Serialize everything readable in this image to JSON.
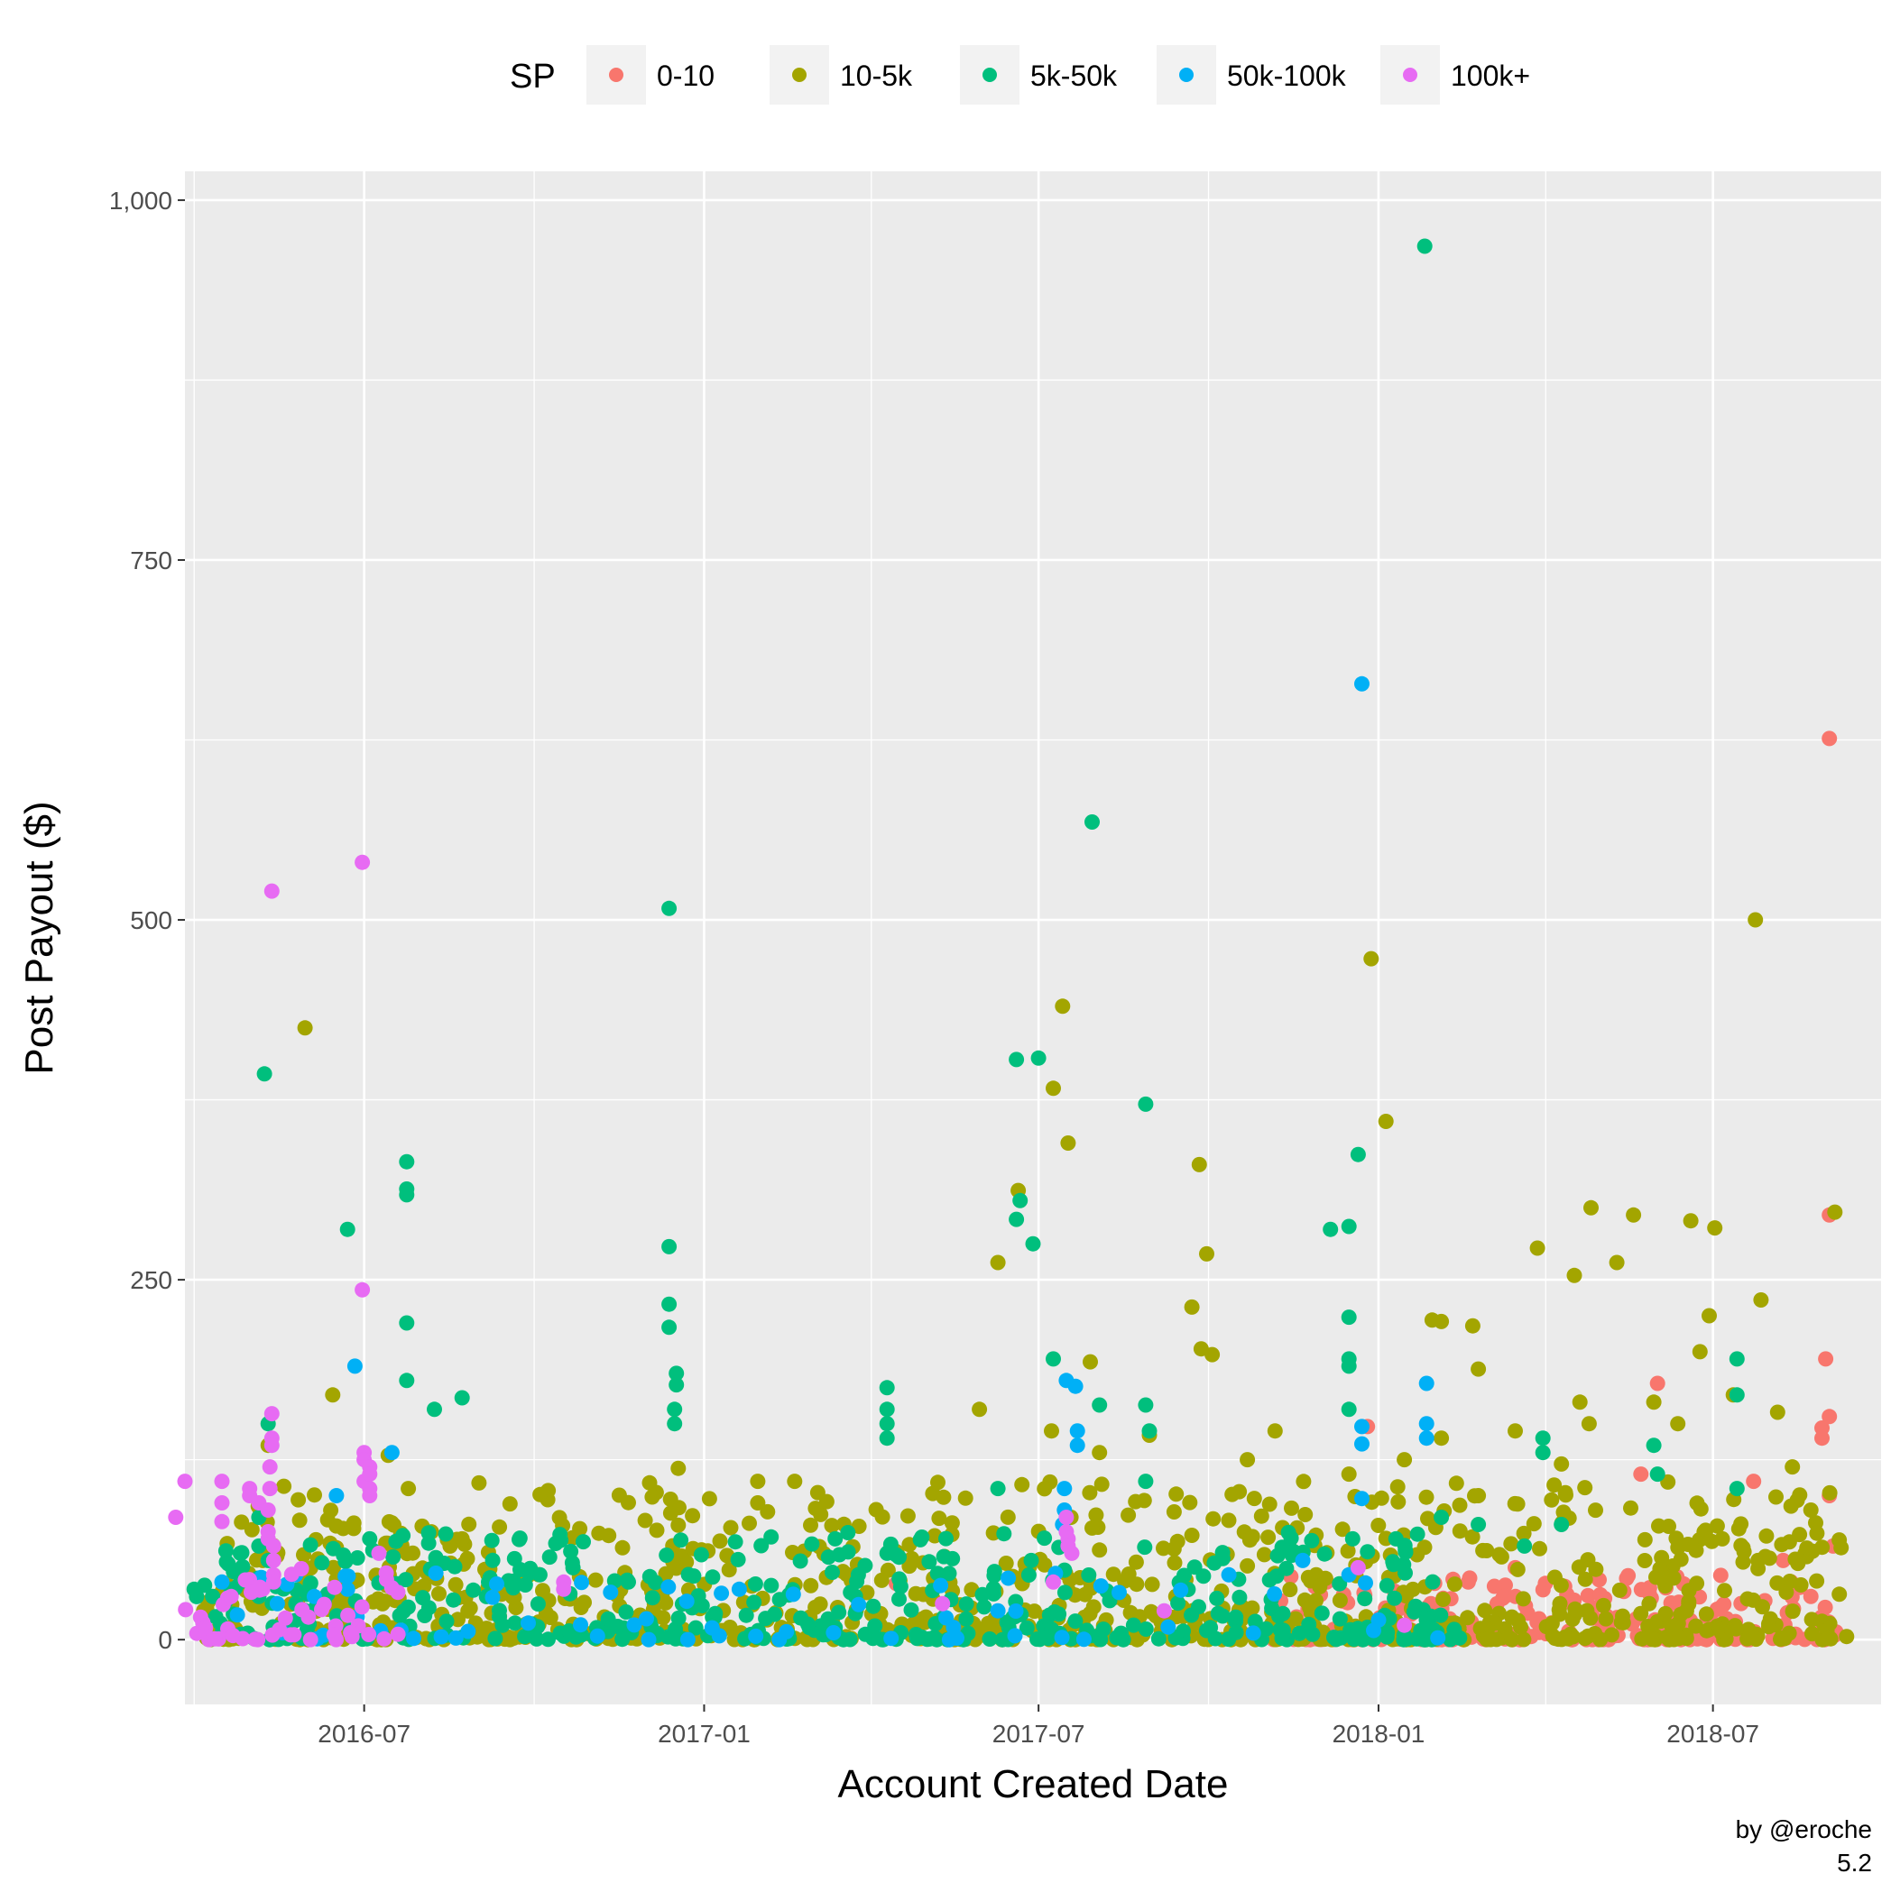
{
  "chart_data": {
    "type": "scatter",
    "title": "",
    "xlabel": "Account Created Date",
    "ylabel": "Post Payout ($)",
    "x_range": [
      "2016-03-26",
      "2018-09-30"
    ],
    "xlim": [
      0,
      918
    ],
    "ylim": [
      -45,
      1020
    ],
    "x_ticks": [
      {
        "label": "2016-07",
        "x": 97
      },
      {
        "label": "2017-01",
        "x": 281
      },
      {
        "label": "2017-07",
        "x": 462
      },
      {
        "label": "2018-01",
        "x": 646
      },
      {
        "label": "2018-07",
        "x": 827
      }
    ],
    "y_ticks": [
      {
        "label": "0",
        "y": 0
      },
      {
        "label": "250",
        "y": 250
      },
      {
        "label": "500",
        "y": 500
      },
      {
        "label": "750",
        "y": 750
      },
      {
        "label": "1,000",
        "y": 1000
      }
    ],
    "legend": {
      "title": "SP",
      "position": "top",
      "entries": [
        "0-10",
        "10-5k",
        "5k-50k",
        "50k-100k",
        "100k+"
      ]
    },
    "x_unit": "days since 2016-03-26",
    "series": [
      {
        "name": "0-10",
        "color": "#F8766D",
        "highlights": [
          [
            890,
            626
          ],
          [
            890,
            295
          ],
          [
            888,
            195
          ],
          [
            890,
            155
          ],
          [
            886,
            147
          ],
          [
            886,
            140
          ],
          [
            890,
            100
          ],
          [
            892,
            65
          ],
          [
            797,
            178
          ],
          [
            788,
            115
          ],
          [
            849,
            110
          ],
          [
            640,
            148
          ],
          [
            385,
            39
          ],
          [
            618,
            40
          ],
          [
            865,
            55
          ],
          [
            880,
            30
          ],
          [
            720,
            50
          ]
        ],
        "cluster": {
          "x": [
            585,
            895
          ],
          "ymax": 45,
          "n": 260,
          "dense": true
        }
      },
      {
        "name": "10-5k",
        "color": "#A3A500",
        "highlights": [
          [
            65,
            425
          ],
          [
            475,
            440
          ],
          [
            470,
            383
          ],
          [
            478,
            345
          ],
          [
            451,
            312
          ],
          [
            440,
            262
          ],
          [
            650,
            360
          ],
          [
            642,
            473
          ],
          [
            549,
            330
          ],
          [
            553,
            268
          ],
          [
            545,
            231
          ],
          [
            550,
            202
          ],
          [
            556,
            198
          ],
          [
            490,
            193
          ],
          [
            850,
            500
          ],
          [
            815,
            291
          ],
          [
            828,
            286
          ],
          [
            761,
            300
          ],
          [
            784,
            295
          ],
          [
            775,
            262
          ],
          [
            732,
            272
          ],
          [
            752,
            253
          ],
          [
            680,
            221
          ],
          [
            697,
            218
          ],
          [
            825,
            225
          ],
          [
            853,
            236
          ],
          [
            893,
            297
          ],
          [
            80,
            170
          ],
          [
            45,
            135
          ],
          [
            110,
            128
          ],
          [
            150,
            70
          ],
          [
            267,
            119
          ],
          [
            310,
            110
          ],
          [
            310,
            95
          ],
          [
            330,
            110
          ],
          [
            430,
            160
          ],
          [
            469,
            145
          ],
          [
            522,
            142
          ],
          [
            495,
            130
          ],
          [
            575,
            125
          ],
          [
            590,
            145
          ],
          [
            700,
            188
          ],
          [
            720,
            145
          ],
          [
            755,
            165
          ],
          [
            760,
            150
          ],
          [
            795,
            165
          ],
          [
            820,
            200
          ],
          [
            838,
            170
          ],
          [
            862,
            158
          ],
          [
            870,
            120
          ],
          [
            808,
            150
          ],
          [
            745,
            122
          ],
          [
            680,
            140
          ],
          [
            700,
            100
          ],
          [
            630,
            115
          ],
          [
            880,
            90
          ],
          [
            675,
            222
          ],
          [
            660,
            125
          ]
        ],
        "cluster": {
          "x": [
            10,
            900
          ],
          "ymax": 110,
          "n": 900
        }
      },
      {
        "name": "5k-50k",
        "color": "#00BF7D",
        "highlights": [
          [
            671,
            968
          ],
          [
            491,
            568
          ],
          [
            262,
            508
          ],
          [
            43,
            393
          ],
          [
            462,
            404
          ],
          [
            450,
            403
          ],
          [
            520,
            372
          ],
          [
            120,
            332
          ],
          [
            120,
            313
          ],
          [
            120,
            309
          ],
          [
            630,
            287
          ],
          [
            635,
            337
          ],
          [
            88,
            285
          ],
          [
            452,
            305
          ],
          [
            450,
            292
          ],
          [
            459,
            275
          ],
          [
            262,
            273
          ],
          [
            262,
            233
          ],
          [
            262,
            217
          ],
          [
            266,
            185
          ],
          [
            266,
            177
          ],
          [
            265,
            160
          ],
          [
            265,
            150
          ],
          [
            630,
            224
          ],
          [
            630,
            195
          ],
          [
            630,
            190
          ],
          [
            630,
            160
          ],
          [
            120,
            220
          ],
          [
            120,
            180
          ],
          [
            150,
            168
          ],
          [
            470,
            195
          ],
          [
            520,
            163
          ],
          [
            495,
            163
          ],
          [
            522,
            145
          ],
          [
            380,
            175
          ],
          [
            380,
            160
          ],
          [
            380,
            150
          ],
          [
            380,
            140
          ],
          [
            840,
            195
          ],
          [
            840,
            170
          ],
          [
            840,
            105
          ],
          [
            795,
            135
          ],
          [
            797,
            115
          ],
          [
            735,
            140
          ],
          [
            735,
            130
          ],
          [
            745,
            80
          ],
          [
            620,
            285
          ],
          [
            680,
            85
          ],
          [
            45,
            150
          ],
          [
            40,
            85
          ],
          [
            40,
            65
          ],
          [
            30,
            60
          ],
          [
            30,
            45
          ],
          [
            45,
            55
          ],
          [
            5,
            35
          ],
          [
            10,
            5
          ],
          [
            15,
            30
          ],
          [
            25,
            35
          ],
          [
            40,
            30
          ],
          [
            60,
            25
          ],
          [
            100,
            70
          ],
          [
            135,
            160
          ],
          [
            210,
            50
          ],
          [
            240,
            40
          ],
          [
            380,
            60
          ],
          [
            440,
            105
          ],
          [
            458,
            55
          ],
          [
            520,
            110
          ],
          [
            632,
            70
          ],
          [
            700,
            80
          ],
          [
            725,
            65
          ]
        ],
        "cluster": {
          "x": [
            5,
            690
          ],
          "ymax": 75,
          "n": 420
        }
      },
      {
        "name": "50k-100k",
        "color": "#00B0F6",
        "highlights": [
          [
            637,
            664
          ],
          [
            672,
            178
          ],
          [
            637,
            148
          ],
          [
            637,
            136
          ],
          [
            637,
            98
          ],
          [
            482,
            176
          ],
          [
            477,
            180
          ],
          [
            483,
            145
          ],
          [
            483,
            135
          ],
          [
            476,
            105
          ],
          [
            476,
            90
          ],
          [
            672,
            150
          ],
          [
            672,
            140
          ],
          [
            92,
            190
          ],
          [
            112,
            130
          ],
          [
            82,
            100
          ],
          [
            60,
            45
          ],
          [
            20,
            40
          ],
          [
            300,
            35
          ],
          [
            565,
            45
          ],
          [
            605,
            55
          ],
          [
            50,
            25
          ],
          [
            70,
            30
          ],
          [
            88,
            35
          ],
          [
            440,
            20
          ],
          [
            475,
            80
          ],
          [
            630,
            45
          ]
        ],
        "cluster": {
          "x": [
            5,
            680
          ],
          "ymax": 50,
          "n": 60
        }
      },
      {
        "name": "100k+",
        "color": "#E76BF3",
        "highlights": [
          [
            96,
            540
          ],
          [
            47,
            520
          ],
          [
            96,
            243
          ],
          [
            47,
            157
          ],
          [
            47,
            140
          ],
          [
            47,
            135
          ],
          [
            46,
            120
          ],
          [
            46,
            105
          ],
          [
            -5,
            85
          ],
          [
            0,
            110
          ],
          [
            20,
            110
          ],
          [
            20,
            95
          ],
          [
            20,
            82
          ],
          [
            35,
            105
          ],
          [
            35,
            100
          ],
          [
            40,
            95
          ],
          [
            45,
            90
          ],
          [
            45,
            75
          ],
          [
            45,
            70
          ],
          [
            48,
            65
          ],
          [
            48,
            55
          ],
          [
            48,
            45
          ],
          [
            48,
            40
          ],
          [
            97,
            130
          ],
          [
            97,
            125
          ],
          [
            97,
            110
          ],
          [
            100,
            120
          ],
          [
            100,
            115
          ],
          [
            100,
            105
          ],
          [
            100,
            100
          ],
          [
            105,
            60
          ],
          [
            205,
            40
          ],
          [
            205,
            35
          ],
          [
            477,
            85
          ],
          [
            477,
            75
          ],
          [
            478,
            70
          ],
          [
            478,
            65
          ],
          [
            480,
            60
          ],
          [
            470,
            40
          ],
          [
            410,
            25
          ],
          [
            530,
            20
          ],
          [
            635,
            50
          ],
          [
            660,
            10
          ],
          [
            25,
            30
          ]
        ],
        "cluster": {
          "x": [
            0,
            120
          ],
          "ymax": 50,
          "n": 50
        }
      }
    ]
  },
  "caption": {
    "line1": "by @eroche",
    "line2": "5.2"
  }
}
